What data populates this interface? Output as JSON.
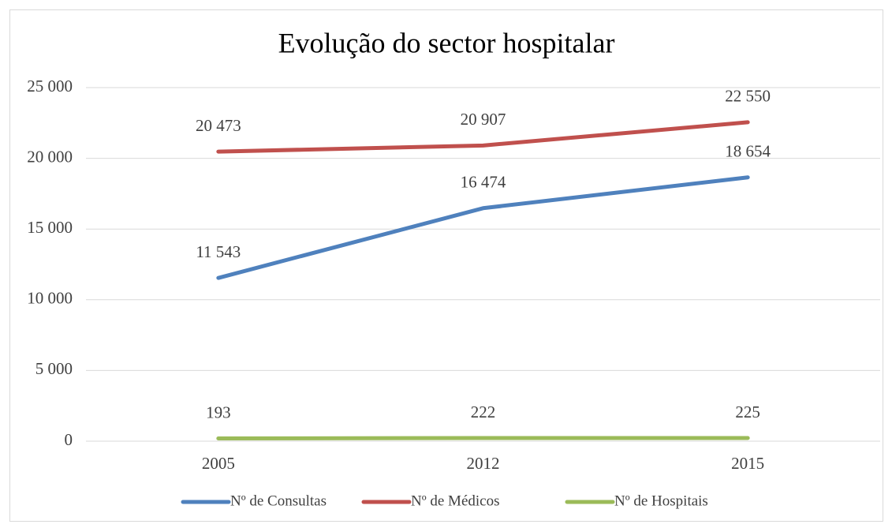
{
  "chart_data": {
    "type": "line",
    "title": "Evolução do sector hospitalar",
    "categories": [
      "2005",
      "2012",
      "2015"
    ],
    "series": [
      {
        "name": "Nº de Consultas",
        "color": "#4f81bd",
        "values": [
          11543,
          16474,
          18654
        ],
        "value_labels": [
          "11 543",
          "16 474",
          "18 654"
        ]
      },
      {
        "name": "Nº de Médicos",
        "color": "#c0504d",
        "values": [
          20473,
          20907,
          22550
        ],
        "value_labels": [
          "20 473",
          "20 907",
          "22 550"
        ]
      },
      {
        "name": "Nº de Hospitais",
        "color": "#9bbb59",
        "values": [
          193,
          222,
          225
        ],
        "value_labels": [
          "193",
          "222",
          "225"
        ]
      }
    ],
    "ylim": [
      0,
      25000
    ],
    "yticks": [
      0,
      {
        "value": 5000,
        "label": "5 000"
      },
      {
        "value": 10000,
        "label": "10 000"
      },
      {
        "value": 15000,
        "label": "15 000"
      },
      {
        "value": 20000,
        "label": "20 000"
      },
      {
        "value": 25000,
        "label": "25 000"
      }
    ],
    "grid": true,
    "legend": "bottom"
  }
}
